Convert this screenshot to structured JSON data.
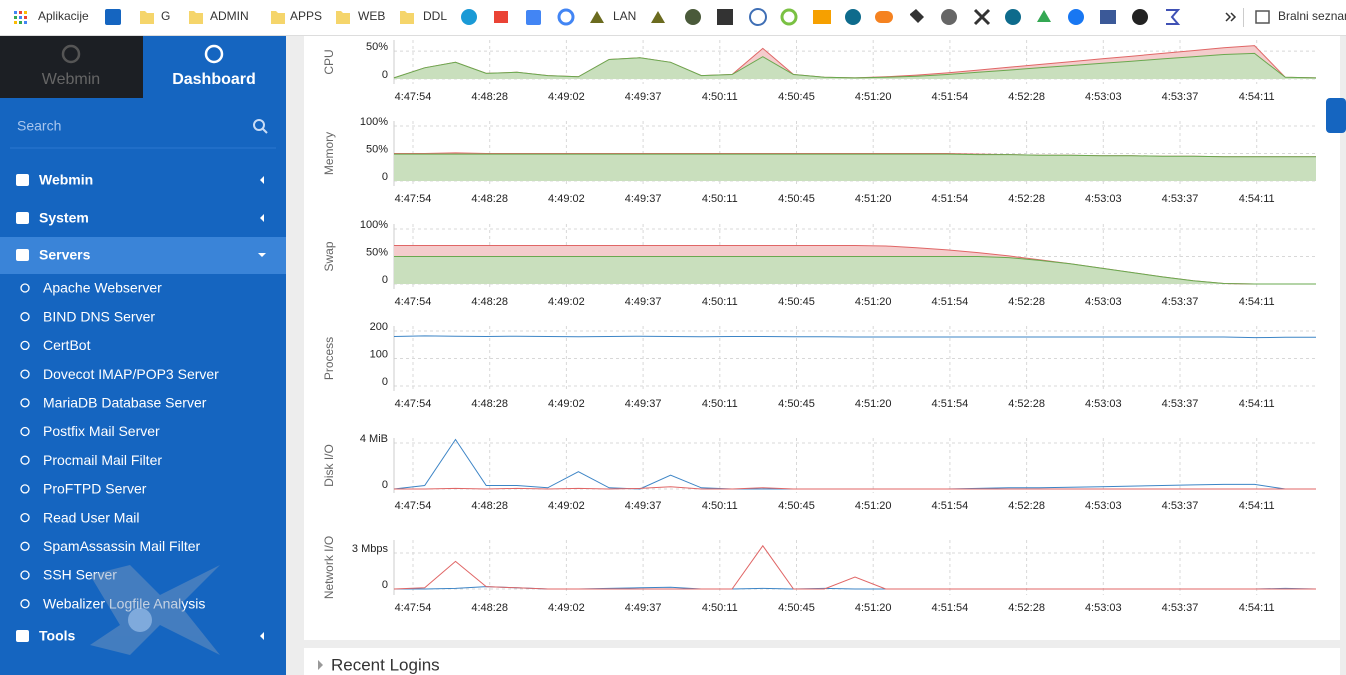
{
  "bookmarks": [
    "Aplikacije",
    "G",
    "ADMIN",
    "APPS",
    "WEB",
    "DDL",
    "LAN",
    "Bralni seznam"
  ],
  "sidebar": {
    "tabs": [
      "Webmin",
      "Dashboard"
    ],
    "search": "Search",
    "menu": [
      "Webmin",
      "System",
      "Servers",
      "Tools"
    ],
    "servers": [
      "Apache Webserver",
      "BIND DNS Server",
      "CertBot",
      "Dovecot IMAP/POP3 Server",
      "MariaDB Database Server",
      "Postfix Mail Server",
      "Procmail Mail Filter",
      "ProFTPD Server",
      "Read User Mail",
      "SpamAssassin Mail Filter",
      "SSH Server",
      "Webalizer Logfile Analysis"
    ]
  },
  "time_labels": [
    "4:47:54",
    "4:48:28",
    "4:49:02",
    "4:49:37",
    "4:50:11",
    "4:50:45",
    "4:51:20",
    "4:51:54",
    "4:52:28",
    "4:53:03",
    "4:53:37",
    "4:54:11"
  ],
  "chart_data": [
    {
      "type": "area",
      "label": "CPU",
      "ylim": [
        -9,
        70
      ],
      "yticks": [
        0,
        {
          "value": 50,
          "label": "50%"
        }
      ],
      "grid": true,
      "series": [
        {
          "color": "#e06666",
          "fill": "#f4cccc",
          "values": [
            2,
            20,
            30,
            10,
            12,
            6,
            4,
            35,
            38,
            30,
            6,
            8,
            55,
            8,
            3,
            2,
            4,
            7,
            11,
            16,
            21,
            26,
            31,
            36,
            41,
            46,
            51,
            56,
            60,
            3,
            2
          ]
        },
        {
          "color": "#6aa84f",
          "fill": "#c9dfbd",
          "values": [
            2,
            20,
            30,
            10,
            12,
            6,
            4,
            35,
            38,
            30,
            6,
            8,
            40,
            8,
            3,
            2,
            3,
            5,
            8,
            12,
            16,
            20,
            24,
            28,
            32,
            36,
            40,
            44,
            46,
            3,
            2
          ]
        }
      ]
    },
    {
      "type": "area",
      "label": "Memory",
      "ylim": [
        -9,
        109
      ],
      "yticks": [
        0,
        {
          "value": 50,
          "label": "50%"
        },
        {
          "value": 100,
          "label": "100%"
        }
      ],
      "grid": true,
      "series": [
        {
          "color": "#e06666",
          "fill": "#f4cccc",
          "values": [
            50,
            50,
            51,
            50,
            50,
            50,
            50,
            50,
            50,
            50,
            50,
            50,
            50,
            50,
            50,
            50,
            50,
            50,
            50,
            49,
            48,
            47,
            47,
            46,
            46,
            45,
            45,
            44,
            44,
            44,
            44
          ]
        },
        {
          "color": "#6aa84f",
          "fill": "#c9dfbd",
          "values": [
            49,
            49,
            49,
            49,
            49,
            49,
            49,
            49,
            49,
            49,
            49,
            49,
            49,
            49,
            49,
            49,
            49,
            49,
            49,
            48,
            48,
            47,
            47,
            46,
            46,
            45,
            45,
            44,
            44,
            44,
            44
          ]
        }
      ]
    },
    {
      "type": "area",
      "label": "Swap",
      "ylim": [
        -9,
        109
      ],
      "yticks": [
        0,
        {
          "value": 50,
          "label": "50%"
        },
        {
          "value": 100,
          "label": "100%"
        }
      ],
      "grid": true,
      "series": [
        {
          "color": "#e06666",
          "fill": "#f4cccc",
          "values": [
            70,
            70,
            70,
            70,
            70,
            70,
            70,
            70,
            70,
            70,
            70,
            70,
            70,
            70,
            70,
            70,
            69,
            66,
            62,
            57,
            51,
            44,
            37,
            29,
            21,
            13,
            6,
            1,
            0,
            0,
            0
          ]
        },
        {
          "color": "#6aa84f",
          "fill": "#c9dfbd",
          "values": [
            50,
            50,
            50,
            50,
            50,
            50,
            50,
            50,
            50,
            50,
            50,
            50,
            50,
            50,
            50,
            50,
            50,
            50,
            50,
            50,
            48,
            43,
            37,
            29,
            21,
            13,
            6,
            1,
            0,
            0,
            0
          ]
        }
      ]
    },
    {
      "type": "line",
      "label": "Process",
      "ylim": [
        -18,
        218
      ],
      "yticks": [
        0,
        100,
        200
      ],
      "grid": true,
      "series": [
        {
          "color": "#3d85c6",
          "values": [
            180,
            182,
            181,
            180,
            181,
            180,
            179,
            180,
            181,
            180,
            179,
            180,
            180,
            179,
            179,
            178,
            178,
            178,
            178,
            178,
            178,
            178,
            178,
            178,
            178,
            178,
            178,
            178,
            176,
            177,
            177
          ]
        }
      ]
    },
    {
      "type": "line",
      "label": "Disk I/O",
      "ylim": [
        -0.35,
        4.43
      ],
      "yticks": [
        0,
        {
          "value": 4,
          "label": "4 MiB"
        }
      ],
      "grid": true,
      "series": [
        {
          "color": "#3d85c6",
          "values": [
            0,
            0.3,
            4.3,
            0.3,
            0.3,
            0.1,
            1.5,
            0.1,
            0,
            1.2,
            0.1,
            0,
            0,
            0,
            0,
            0,
            0,
            0,
            0,
            0.05,
            0.1,
            0.1,
            0.15,
            0.2,
            0.25,
            0.3,
            0.35,
            0.4,
            0.4,
            0,
            0
          ]
        },
        {
          "color": "#e06666",
          "values": [
            0,
            0,
            0.05,
            0,
            0.05,
            0,
            0.05,
            0,
            0.05,
            0.2,
            0,
            0,
            0.1,
            0,
            0,
            0,
            0,
            0,
            0,
            0,
            0,
            0,
            0,
            0,
            0,
            0,
            0,
            0,
            0,
            0,
            0
          ]
        }
      ]
    },
    {
      "type": "line",
      "label": "Network I/O",
      "ylim": [
        -0.5,
        4.08
      ],
      "yticks": [
        0,
        {
          "value": 3,
          "label": "3 Mbps"
        }
      ],
      "grid": true,
      "series": [
        {
          "color": "#3d85c6",
          "values": [
            0,
            0,
            0.05,
            0.2,
            0.1,
            0,
            0,
            0.05,
            0.1,
            0.15,
            0,
            0,
            0.05,
            0,
            0.05,
            0,
            0,
            0,
            0,
            0,
            0,
            0,
            0,
            0,
            0,
            0,
            0,
            0,
            0,
            0.05,
            0
          ]
        },
        {
          "color": "#e06666",
          "values": [
            0,
            0.1,
            2.3,
            0.2,
            0.1,
            0,
            0,
            0,
            0,
            0,
            0,
            0,
            3.6,
            0,
            0,
            1.0,
            0,
            0,
            0,
            0,
            0,
            0,
            0,
            0,
            0,
            0,
            0,
            0,
            0,
            0,
            0
          ]
        }
      ]
    }
  ],
  "recent_logins": "Recent Logins"
}
